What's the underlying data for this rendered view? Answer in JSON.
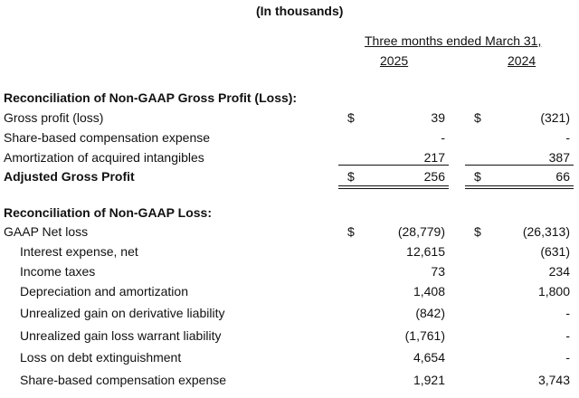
{
  "header": {
    "units": "(In thousands)",
    "period": "Three months ended March 31,",
    "col_2025": "2025",
    "col_2024": "2024"
  },
  "gross_profit_section": {
    "title": "Reconciliation of Non-GAAP Gross Profit (Loss):",
    "rows": [
      {
        "label": "Gross profit (loss)",
        "d1": "$",
        "v2025": "39",
        "d2": "$",
        "v2024": "(321)"
      },
      {
        "label": "Share-based compensation expense",
        "d1": "",
        "v2025": "-",
        "d2": "",
        "v2024": "-"
      },
      {
        "label": "Amortization of acquired intangibles",
        "d1": "",
        "v2025": "217",
        "d2": "",
        "v2024": "387"
      },
      {
        "label": "Adjusted Gross Profit",
        "d1": "$",
        "v2025": "256",
        "d2": "$",
        "v2024": "66"
      }
    ]
  },
  "loss_section": {
    "title": "Reconciliation of Non-GAAP Loss:",
    "rows": [
      {
        "label": "GAAP Net loss",
        "d1": "$",
        "v2025": "(28,779)",
        "d2": "$",
        "v2024": "(26,313)"
      },
      {
        "label": "Interest expense, net",
        "d1": "",
        "v2025": "12,615",
        "d2": "",
        "v2024": "(631)"
      },
      {
        "label": "Income taxes",
        "d1": "",
        "v2025": "73",
        "d2": "",
        "v2024": "234"
      },
      {
        "label": "Depreciation and amortization",
        "d1": "",
        "v2025": "1,408",
        "d2": "",
        "v2024": "1,800"
      },
      {
        "label": "Unrealized gain on derivative liability",
        "d1": "",
        "v2025": "(842)",
        "d2": "",
        "v2024": "-"
      },
      {
        "label": "Unrealized gain loss warrant liability",
        "d1": "",
        "v2025": "(1,761)",
        "d2": "",
        "v2024": "-"
      },
      {
        "label": "Loss on debt extinguishment",
        "d1": "",
        "v2025": "4,654",
        "d2": "",
        "v2024": "-"
      },
      {
        "label": "Share-based compensation expense",
        "d1": "",
        "v2025": "1,921",
        "d2": "",
        "v2024": "3,743"
      }
    ]
  }
}
